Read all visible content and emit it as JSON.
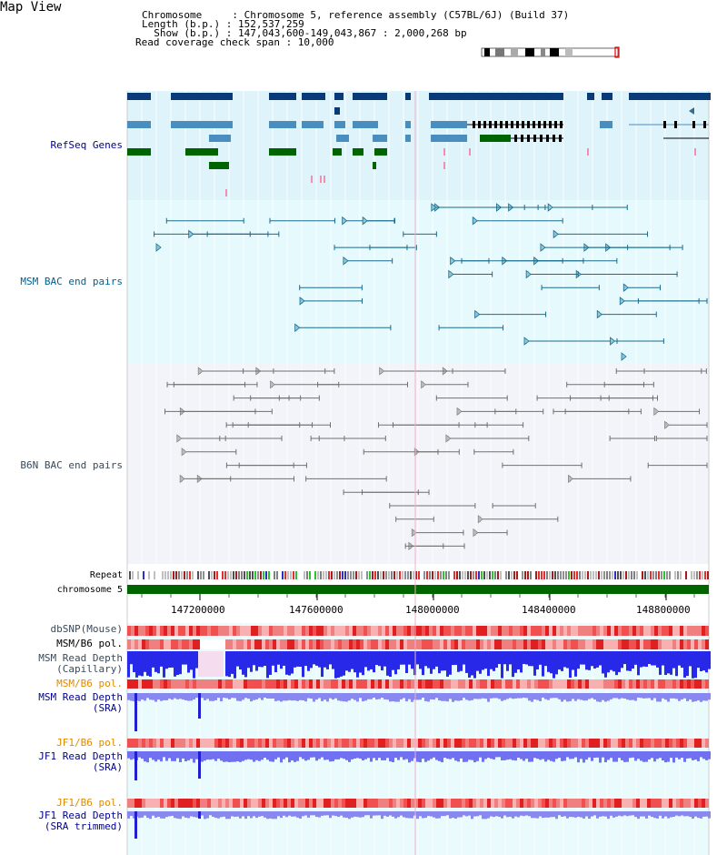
{
  "title": "Map View",
  "info": {
    "chromosome": "Chromosome     : Chromosome 5, reference assembly (C57BL/6J) (Build 37)",
    "length": "Length (b.p.) : 152,537,259",
    "show": "  Show (b.p.) : 147,043,600-149,043,867 : 2,000,268 bp",
    "coverage": "Read coverage check span : 10,000"
  },
  "tracks": {
    "refseq": "RefSeq Genes",
    "msm_bac": "MSM BAC end pairs",
    "b6n_bac": "B6N BAC end pairs",
    "repeat": "Repeat",
    "chromosome": "chromosome 5",
    "dbsnp": "dbSNP(Mouse)",
    "msm_b6_pol_1": "MSM/B6 pol.",
    "msm_read_depth_cap": "MSM Read Depth\n(Capillary)",
    "msm_b6_pol_2": "MSM/B6 pol.",
    "msm_read_depth_sra": "MSM Read Depth\n(SRA)",
    "jf1_b6_pol_1": "JF1/B6 pol.",
    "jf1_read_depth_sra": "JF1 Read Depth\n(SRA)",
    "jf1_b6_pol_2": "JF1/B6 pol.",
    "jf1_read_depth_trim": "JF1 Read Depth\n(SRA trimmed)"
  },
  "axis": {
    "ticks": [
      "147200000",
      "147600000",
      "148000000",
      "148400000",
      "148800000"
    ]
  },
  "colors": {
    "gene_dark": "#0a3a78",
    "gene_mid": "#4a8ec0",
    "gene_green": "#006400",
    "msm_line": "#1a6b8e",
    "b6n_line": "#707070",
    "chrom_green": "#006400",
    "depth_blue": "#3030e0"
  }
}
